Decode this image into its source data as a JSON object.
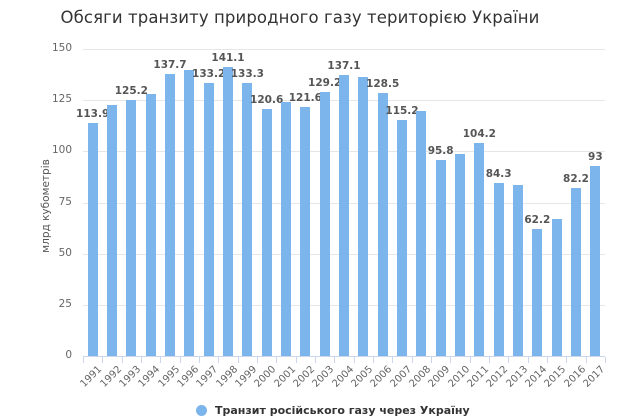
{
  "title": "Обсяги транзиту природного газу територією України",
  "y_axis": {
    "label": "млрд кубометрів",
    "ticks": [
      "0",
      "25",
      "50",
      "75",
      "100",
      "125",
      "150"
    ]
  },
  "legend": {
    "label": "Транзит російського газу через Україну"
  },
  "colors": {
    "bar": "#7cb5ec",
    "grid": "#e6e6e6",
    "text": "#333333"
  },
  "chart_data": {
    "type": "bar",
    "title": "Обсяги транзиту природного газу територією України",
    "xlabel": "",
    "ylabel": "млрд кубометрів",
    "ylim": [
      0,
      150
    ],
    "yticks": [
      0,
      25,
      50,
      75,
      100,
      125,
      150
    ],
    "grid": true,
    "legend_position": "bottom",
    "categories": [
      "1991",
      "1992",
      "1993",
      "1994",
      "1995",
      "1996",
      "1997",
      "1998",
      "1999",
      "2000",
      "2001",
      "2002",
      "2003",
      "2004",
      "2005",
      "2006",
      "2007",
      "2008",
      "2009",
      "2010",
      "2011",
      "2012",
      "2013",
      "2014",
      "2015",
      "2016",
      "2017"
    ],
    "series": [
      {
        "name": "Транзит російського газу через Україну",
        "values": [
          113.9,
          122.7,
          125.2,
          128,
          137.7,
          139.7,
          133.2,
          141.1,
          133.3,
          120.6,
          124.1,
          121.6,
          129.2,
          137.1,
          136.4,
          128.5,
          115.2,
          119.6,
          95.8,
          98.6,
          104.2,
          84.3,
          83.7,
          62.2,
          67.1,
          82.2,
          93
        ],
        "data_labels": [
          "113.9",
          "",
          "125.2",
          "",
          "137.7",
          "",
          "133.2",
          "141.1",
          "133.3",
          "120.6",
          "",
          "121.6",
          "129.2",
          "137.1",
          "",
          "128.5",
          "115.2",
          "",
          "95.8",
          "",
          "104.2",
          "84.3",
          "",
          "62.2",
          "",
          "82.2",
          "93"
        ]
      }
    ]
  }
}
